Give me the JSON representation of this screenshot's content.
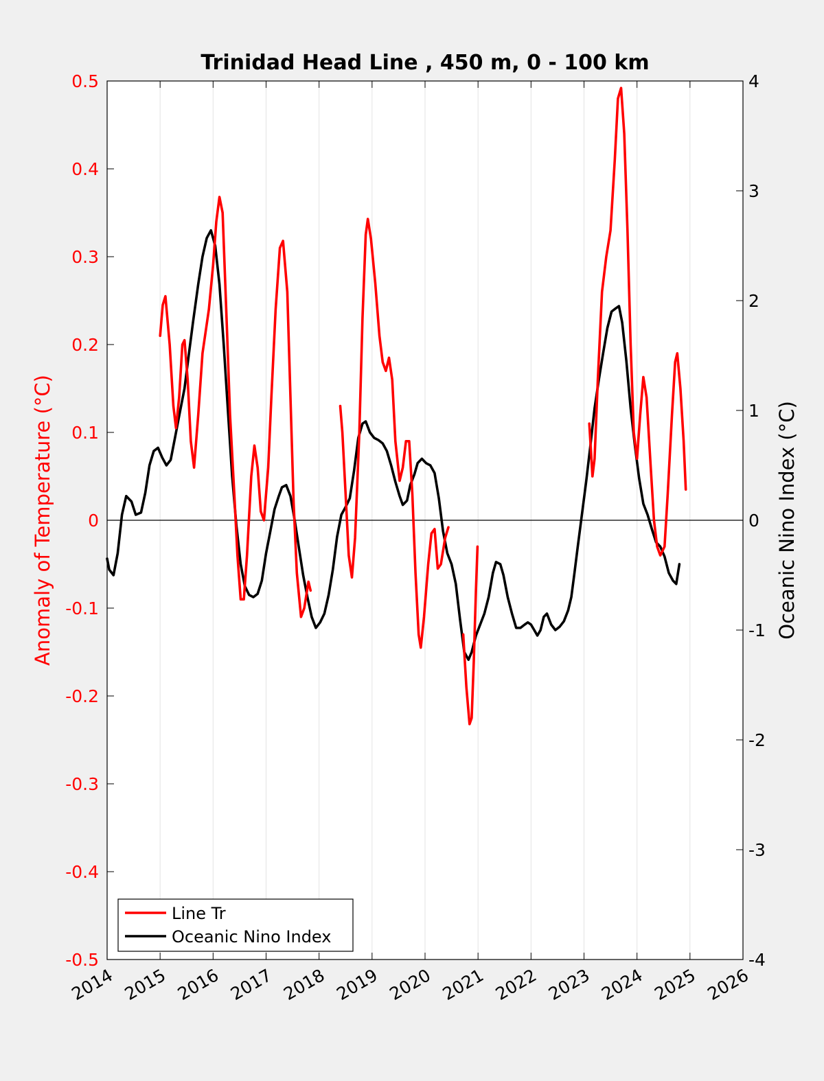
{
  "chart_data": {
    "type": "line",
    "title": "Trinidad Head Line , 450 m, 0 - 100 km",
    "ylabel_left": "Anomaly of Temperature (°C)",
    "ylabel_right": "Oceanic Nino Index (°C)",
    "xlim": [
      2014,
      2026
    ],
    "ylim_left": [
      -0.5,
      0.5
    ],
    "ylim_right": [
      -4,
      4
    ],
    "x_ticks": [
      2014,
      2015,
      2016,
      2017,
      2018,
      2019,
      2020,
      2021,
      2022,
      2023,
      2024,
      2025,
      2026
    ],
    "y_left_ticks": [
      0.5,
      0.4,
      0.3,
      0.2,
      0.1,
      0,
      -0.1,
      -0.2,
      -0.3,
      -0.4,
      -0.5
    ],
    "y_right_ticks": [
      4,
      3,
      2,
      1,
      0,
      -1,
      -2,
      -3,
      -4
    ],
    "x_tick_labels": [
      "2014",
      "2015",
      "2016",
      "2017",
      "2018",
      "2019",
      "2020",
      "2021",
      "2022",
      "2023",
      "2024",
      "2025",
      "2026"
    ],
    "y_left_tick_labels": [
      "0.5",
      "0.4",
      "0.3",
      "0.2",
      "0.1",
      "0",
      "-0.1",
      "-0.2",
      "-0.3",
      "-0.4",
      "-0.5"
    ],
    "y_right_tick_labels": [
      "4",
      "3",
      "2",
      "1",
      "0",
      "-1",
      "-2",
      "-3",
      "-4"
    ],
    "grid": "vertical",
    "legend_position": "bottom-left",
    "series": [
      {
        "name": "Line Tr",
        "axis": "left",
        "color": "#ff0000",
        "segments": [
          [
            [
              2015.0,
              0.21
            ],
            [
              2015.05,
              0.245
            ],
            [
              2015.1,
              0.255
            ],
            [
              2015.18,
              0.2
            ],
            [
              2015.25,
              0.13
            ],
            [
              2015.3,
              0.105
            ],
            [
              2015.36,
              0.14
            ],
            [
              2015.42,
              0.2
            ],
            [
              2015.46,
              0.205
            ],
            [
              2015.52,
              0.16
            ],
            [
              2015.58,
              0.09
            ],
            [
              2015.64,
              0.06
            ],
            [
              2015.72,
              0.12
            ],
            [
              2015.8,
              0.19
            ],
            [
              2015.92,
              0.24
            ],
            [
              2016.0,
              0.29
            ],
            [
              2016.06,
              0.34
            ],
            [
              2016.12,
              0.368
            ],
            [
              2016.18,
              0.35
            ],
            [
              2016.26,
              0.22
            ],
            [
              2016.32,
              0.12
            ],
            [
              2016.4,
              0.03
            ],
            [
              2016.46,
              -0.04
            ],
            [
              2016.52,
              -0.09
            ],
            [
              2016.58,
              -0.09
            ],
            [
              2016.64,
              -0.04
            ],
            [
              2016.72,
              0.05
            ],
            [
              2016.78,
              0.085
            ],
            [
              2016.84,
              0.06
            ],
            [
              2016.9,
              0.01
            ],
            [
              2016.96,
              0.0
            ],
            [
              2017.04,
              0.06
            ],
            [
              2017.1,
              0.14
            ],
            [
              2017.18,
              0.24
            ],
            [
              2017.26,
              0.31
            ],
            [
              2017.32,
              0.318
            ],
            [
              2017.4,
              0.26
            ],
            [
              2017.46,
              0.14
            ],
            [
              2017.52,
              0.02
            ],
            [
              2017.58,
              -0.06
            ],
            [
              2017.66,
              -0.11
            ],
            [
              2017.72,
              -0.1
            ],
            [
              2017.8,
              -0.07
            ],
            [
              2017.84,
              -0.08
            ]
          ],
          [
            [
              2018.4,
              0.13
            ],
            [
              2018.44,
              0.1
            ],
            [
              2018.5,
              0.03
            ],
            [
              2018.56,
              -0.04
            ],
            [
              2018.62,
              -0.065
            ],
            [
              2018.68,
              -0.02
            ],
            [
              2018.76,
              0.1
            ],
            [
              2018.82,
              0.23
            ],
            [
              2018.88,
              0.325
            ],
            [
              2018.92,
              0.343
            ],
            [
              2018.98,
              0.32
            ],
            [
              2019.06,
              0.27
            ],
            [
              2019.14,
              0.21
            ],
            [
              2019.2,
              0.18
            ],
            [
              2019.26,
              0.17
            ],
            [
              2019.32,
              0.185
            ],
            [
              2019.38,
              0.16
            ],
            [
              2019.44,
              0.09
            ],
            [
              2019.52,
              0.045
            ],
            [
              2019.58,
              0.06
            ],
            [
              2019.64,
              0.09
            ],
            [
              2019.7,
              0.09
            ],
            [
              2019.76,
              0.03
            ],
            [
              2019.82,
              -0.06
            ],
            [
              2019.88,
              -0.13
            ],
            [
              2019.92,
              -0.145
            ],
            [
              2019.98,
              -0.11
            ],
            [
              2020.06,
              -0.05
            ],
            [
              2020.12,
              -0.015
            ],
            [
              2020.18,
              -0.01
            ],
            [
              2020.24,
              -0.055
            ],
            [
              2020.3,
              -0.05
            ],
            [
              2020.38,
              -0.02
            ],
            [
              2020.44,
              -0.008
            ]
          ],
          [
            [
              2020.72,
              -0.13
            ],
            [
              2020.78,
              -0.19
            ],
            [
              2020.84,
              -0.232
            ],
            [
              2020.88,
              -0.225
            ],
            [
              2020.92,
              -0.16
            ],
            [
              2020.96,
              -0.08
            ],
            [
              2020.99,
              -0.03
            ]
          ],
          [
            [
              2023.1,
              0.11
            ],
            [
              2023.16,
              0.05
            ],
            [
              2023.2,
              0.07
            ],
            [
              2023.26,
              0.16
            ],
            [
              2023.34,
              0.26
            ],
            [
              2023.42,
              0.3
            ],
            [
              2023.5,
              0.33
            ],
            [
              2023.58,
              0.41
            ],
            [
              2023.64,
              0.48
            ],
            [
              2023.7,
              0.492
            ],
            [
              2023.76,
              0.44
            ],
            [
              2023.82,
              0.33
            ],
            [
              2023.88,
              0.2
            ],
            [
              2023.94,
              0.1
            ],
            [
              2024.0,
              0.07
            ],
            [
              2024.06,
              0.12
            ],
            [
              2024.12,
              0.163
            ],
            [
              2024.18,
              0.14
            ],
            [
              2024.26,
              0.06
            ],
            [
              2024.32,
              0.0
            ],
            [
              2024.38,
              -0.03
            ],
            [
              2024.44,
              -0.04
            ],
            [
              2024.52,
              -0.03
            ],
            [
              2024.58,
              0.03
            ],
            [
              2024.66,
              0.12
            ],
            [
              2024.72,
              0.18
            ],
            [
              2024.76,
              0.19
            ],
            [
              2024.82,
              0.15
            ],
            [
              2024.88,
              0.09
            ],
            [
              2024.92,
              0.035
            ]
          ]
        ]
      },
      {
        "name": "Oceanic Nino Index",
        "axis": "right",
        "color": "#000000",
        "segments": [
          [
            [
              2014.0,
              -0.35
            ],
            [
              2014.04,
              -0.45
            ],
            [
              2014.12,
              -0.5
            ],
            [
              2014.2,
              -0.3
            ],
            [
              2014.28,
              0.05
            ],
            [
              2014.36,
              0.22
            ],
            [
              2014.46,
              0.17
            ],
            [
              2014.54,
              0.05
            ],
            [
              2014.64,
              0.07
            ],
            [
              2014.72,
              0.25
            ],
            [
              2014.8,
              0.5
            ],
            [
              2014.88,
              0.63
            ],
            [
              2014.96,
              0.66
            ],
            [
              2015.04,
              0.57
            ],
            [
              2015.12,
              0.5
            ],
            [
              2015.2,
              0.55
            ],
            [
              2015.28,
              0.75
            ],
            [
              2015.36,
              0.95
            ],
            [
              2015.46,
              1.2
            ],
            [
              2015.54,
              1.5
            ],
            [
              2015.62,
              1.8
            ],
            [
              2015.72,
              2.15
            ],
            [
              2015.8,
              2.4
            ],
            [
              2015.88,
              2.57
            ],
            [
              2015.96,
              2.64
            ],
            [
              2016.04,
              2.5
            ],
            [
              2016.12,
              2.15
            ],
            [
              2016.2,
              1.6
            ],
            [
              2016.28,
              1.0
            ],
            [
              2016.36,
              0.4
            ],
            [
              2016.44,
              -0.05
            ],
            [
              2016.52,
              -0.4
            ],
            [
              2016.6,
              -0.6
            ],
            [
              2016.68,
              -0.68
            ],
            [
              2016.76,
              -0.7
            ],
            [
              2016.84,
              -0.67
            ],
            [
              2016.92,
              -0.55
            ],
            [
              2017.0,
              -0.3
            ],
            [
              2017.08,
              -0.1
            ],
            [
              2017.16,
              0.1
            ],
            [
              2017.24,
              0.22
            ],
            [
              2017.3,
              0.3
            ],
            [
              2017.38,
              0.32
            ],
            [
              2017.46,
              0.22
            ],
            [
              2017.54,
              0.0
            ],
            [
              2017.62,
              -0.25
            ],
            [
              2017.7,
              -0.5
            ],
            [
              2017.78,
              -0.7
            ],
            [
              2017.86,
              -0.88
            ],
            [
              2017.94,
              -0.98
            ],
            [
              2018.02,
              -0.93
            ],
            [
              2018.1,
              -0.85
            ],
            [
              2018.18,
              -0.68
            ],
            [
              2018.26,
              -0.45
            ],
            [
              2018.34,
              -0.15
            ],
            [
              2018.42,
              0.05
            ],
            [
              2018.5,
              0.12
            ],
            [
              2018.58,
              0.2
            ],
            [
              2018.66,
              0.45
            ],
            [
              2018.74,
              0.75
            ],
            [
              2018.82,
              0.88
            ],
            [
              2018.88,
              0.9
            ],
            [
              2018.96,
              0.8
            ],
            [
              2019.04,
              0.75
            ],
            [
              2019.12,
              0.73
            ],
            [
              2019.2,
              0.7
            ],
            [
              2019.28,
              0.63
            ],
            [
              2019.36,
              0.5
            ],
            [
              2019.44,
              0.35
            ],
            [
              2019.52,
              0.22
            ],
            [
              2019.58,
              0.14
            ],
            [
              2019.66,
              0.18
            ],
            [
              2019.72,
              0.32
            ],
            [
              2019.8,
              0.42
            ],
            [
              2019.86,
              0.52
            ],
            [
              2019.94,
              0.56
            ],
            [
              2020.02,
              0.52
            ],
            [
              2020.1,
              0.5
            ],
            [
              2020.18,
              0.43
            ],
            [
              2020.26,
              0.2
            ],
            [
              2020.34,
              -0.1
            ],
            [
              2020.42,
              -0.3
            ],
            [
              2020.5,
              -0.4
            ],
            [
              2020.58,
              -0.58
            ],
            [
              2020.66,
              -0.9
            ],
            [
              2020.74,
              -1.2
            ],
            [
              2020.82,
              -1.27
            ],
            [
              2020.88,
              -1.2
            ],
            [
              2020.96,
              -1.05
            ],
            [
              2021.04,
              -0.95
            ],
            [
              2021.12,
              -0.85
            ],
            [
              2021.2,
              -0.7
            ],
            [
              2021.28,
              -0.48
            ],
            [
              2021.34,
              -0.38
            ],
            [
              2021.42,
              -0.4
            ],
            [
              2021.48,
              -0.5
            ],
            [
              2021.56,
              -0.7
            ],
            [
              2021.64,
              -0.85
            ],
            [
              2021.72,
              -0.98
            ],
            [
              2021.8,
              -0.98
            ],
            [
              2021.88,
              -0.95
            ],
            [
              2021.94,
              -0.93
            ],
            [
              2022.0,
              -0.95
            ],
            [
              2022.06,
              -1.0
            ],
            [
              2022.12,
              -1.05
            ],
            [
              2022.18,
              -1.0
            ],
            [
              2022.24,
              -0.88
            ],
            [
              2022.3,
              -0.85
            ],
            [
              2022.38,
              -0.95
            ],
            [
              2022.46,
              -1.0
            ],
            [
              2022.54,
              -0.97
            ],
            [
              2022.62,
              -0.92
            ],
            [
              2022.7,
              -0.82
            ],
            [
              2022.76,
              -0.7
            ],
            [
              2022.82,
              -0.48
            ],
            [
              2022.88,
              -0.25
            ],
            [
              2022.96,
              0.05
            ],
            [
              2023.04,
              0.35
            ],
            [
              2023.12,
              0.68
            ],
            [
              2023.2,
              1.02
            ],
            [
              2023.28,
              1.28
            ],
            [
              2023.36,
              1.52
            ],
            [
              2023.44,
              1.75
            ],
            [
              2023.52,
              1.9
            ],
            [
              2023.6,
              1.93
            ],
            [
              2023.66,
              1.95
            ],
            [
              2023.72,
              1.8
            ],
            [
              2023.8,
              1.45
            ],
            [
              2023.88,
              1.02
            ],
            [
              2023.96,
              0.68
            ],
            [
              2024.04,
              0.38
            ],
            [
              2024.12,
              0.15
            ],
            [
              2024.2,
              0.05
            ],
            [
              2024.28,
              -0.08
            ],
            [
              2024.36,
              -0.2
            ],
            [
              2024.44,
              -0.24
            ],
            [
              2024.52,
              -0.33
            ],
            [
              2024.6,
              -0.48
            ],
            [
              2024.68,
              -0.55
            ],
            [
              2024.74,
              -0.58
            ],
            [
              2024.8,
              -0.4
            ]
          ]
        ]
      }
    ]
  }
}
